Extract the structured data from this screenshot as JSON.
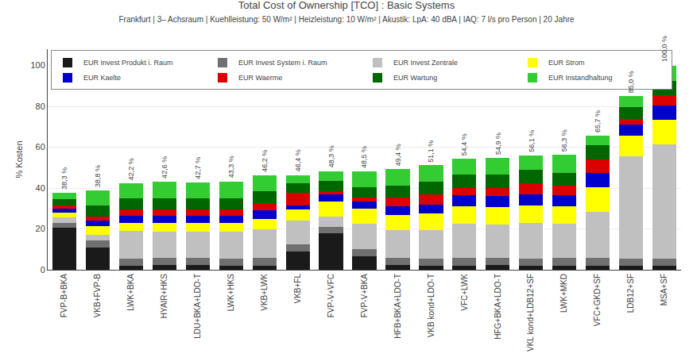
{
  "chart_data": {
    "type": "bar",
    "stacked": true,
    "title": "Total Cost of Ownership [TCO] : Basic Systems",
    "subtitle": "Frankfurt | 3– Achsraum | Kuehlleistung: 50 W/m² | Heizleistung: 10 W/m² | Akustik: LpA: 40 dBA | IAQ: 7 l/s pro Person | 20 Jahre",
    "ylabel": "% Kosten",
    "categories": [
      "FVP-B+BKA",
      "VKB+FVP-B",
      "LWK+BKA",
      "HYAIR+HKS",
      "LDU+BKA+LDO-T",
      "LWK+HKS",
      "VKB+LWK",
      "VKB+FL",
      "FVP-V+VFC",
      "FVP-V+BKA",
      "HFB+BKA+LDO-T",
      "VKB kond+LDO-T",
      "VFC+LWK",
      "HFG+BKA+LDO-T",
      "VKL kond+LDB12+SF",
      "LWK+MKD",
      "VFC+GKD+SF",
      "LDB12+SF",
      "MSA+SF"
    ],
    "series": [
      {
        "name": "EUR Invest Produkt i. Raum",
        "color": "#1a1a1a",
        "values": [
          20.5,
          11.0,
          2.0,
          2.5,
          2.5,
          2.0,
          2.0,
          9.0,
          18.0,
          6.5,
          2.5,
          2.0,
          2.0,
          2.5,
          2.0,
          2.0,
          2.0,
          2.0,
          2.0
        ]
      },
      {
        "name": "EUR Invest System i. Raum",
        "color": "#707070",
        "values": [
          2.5,
          3.5,
          3.5,
          3.5,
          3.5,
          3.5,
          4.0,
          3.5,
          3.0,
          3.5,
          3.5,
          3.5,
          4.0,
          3.5,
          3.5,
          4.0,
          4.0,
          3.5,
          3.5
        ]
      },
      {
        "name": "EUR Invest Zentrale",
        "color": "#c0c0c0",
        "values": [
          2.5,
          2.5,
          13.5,
          12.5,
          12.5,
          13.0,
          14.0,
          11.5,
          5.0,
          12.5,
          13.5,
          14.0,
          16.5,
          16.0,
          17.5,
          16.5,
          22.5,
          50.0,
          56.0
        ]
      },
      {
        "name": "EUR Strom",
        "color": "#ffff00",
        "values": [
          2.5,
          4.5,
          4.0,
          4.5,
          4.5,
          4.5,
          5.0,
          5.5,
          7.5,
          7.5,
          7.5,
          8.0,
          8.5,
          8.5,
          8.5,
          8.5,
          12.0,
          10.0,
          12.0
        ]
      },
      {
        "name": "EUR Kaelte",
        "color": "#0000cc",
        "values": [
          2.0,
          2.5,
          3.5,
          3.5,
          3.5,
          3.5,
          4.0,
          2.0,
          3.5,
          3.5,
          4.0,
          4.5,
          5.5,
          5.5,
          5.5,
          5.5,
          7.0,
          5.5,
          7.0
        ]
      },
      {
        "name": "EUR Waerme",
        "color": "#dd0000",
        "values": [
          1.5,
          2.0,
          3.0,
          3.0,
          3.0,
          3.0,
          3.5,
          6.0,
          1.5,
          2.0,
          4.5,
          5.0,
          3.5,
          4.0,
          5.5,
          4.5,
          6.5,
          3.0,
          5.0
        ]
      },
      {
        "name": "EUR Wartung",
        "color": "#006600",
        "values": [
          3.0,
          5.5,
          5.5,
          5.5,
          5.5,
          5.5,
          6.0,
          5.0,
          5.0,
          5.0,
          5.5,
          6.0,
          6.5,
          6.5,
          6.5,
          6.5,
          7.0,
          5.5,
          7.0
        ]
      },
      {
        "name": "EUR Instandhaltung",
        "color": "#33cc33",
        "values": [
          3.3,
          7.3,
          7.2,
          8.1,
          7.7,
          8.3,
          7.7,
          3.9,
          4.8,
          7.5,
          8.4,
          8.1,
          7.9,
          8.4,
          7.1,
          8.8,
          4.7,
          5.5,
          7.5
        ]
      }
    ],
    "totals": [
      38.3,
      38.8,
      42.2,
      42.6,
      42.7,
      43.3,
      46.2,
      46.4,
      48.3,
      48.5,
      49.4,
      51.1,
      54.4,
      54.9,
      56.1,
      56.3,
      65.7,
      85.0,
      100.0
    ],
    "total_labels": [
      "38,3 %",
      "38,8 %",
      "42,2 %",
      "42,6 %",
      "42,7 %",
      "43,3 %",
      "46,2 %",
      "46,4 %",
      "48,3 %",
      "48,5 %",
      "49,4 %",
      "51,1 %",
      "54,4 %",
      "54,9 %",
      "56,1 %",
      "56,3 %",
      "65,7 %",
      "85,0 %",
      "100,0 %"
    ],
    "ylim": [
      0,
      108
    ],
    "yticks": [
      0,
      20,
      40,
      60,
      80,
      100
    ],
    "grid": true,
    "legend": "upper left"
  }
}
